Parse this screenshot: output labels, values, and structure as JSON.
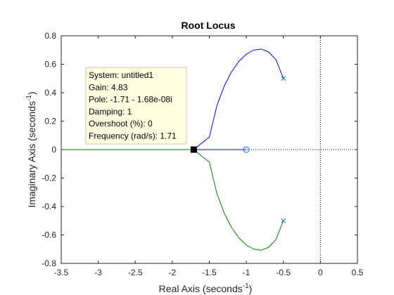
{
  "chart_data": {
    "type": "line",
    "title": "Root Locus",
    "xlabel": "Real Axis (seconds",
    "ylabel": "Imaginary Axis (seconds",
    "axis_unit_exponent": "-1",
    "axis_unit_close": ")",
    "xlim": [
      -3.5,
      0.5
    ],
    "ylim": [
      -0.8,
      0.8
    ],
    "xticks": [
      -3.5,
      -3,
      -2.5,
      -2,
      -1.5,
      -1,
      -0.5,
      0,
      0.5
    ],
    "xtick_labels": [
      "-3.5",
      "-3",
      "-2.5",
      "-2",
      "-1.5",
      "-1",
      "-0.5",
      "0",
      "0.5"
    ],
    "yticks": [
      -0.8,
      -0.6,
      -0.4,
      -0.2,
      0,
      0.2,
      0.4,
      0.6,
      0.8
    ],
    "ytick_labels": [
      "-0.8",
      "-0.6",
      "-0.4",
      "-0.2",
      "0",
      "0.2",
      "0.4",
      "0.6",
      "0.8"
    ],
    "grid": false,
    "colors": {
      "series1": "#0000ff",
      "series2": "#008000",
      "reference": "#000000",
      "marker": "#0072bd"
    },
    "series": [
      {
        "color": "#0000ff",
        "points": [
          [
            -0.5,
            0.5
          ],
          [
            -0.6,
            0.633
          ],
          [
            -0.7,
            0.687
          ],
          [
            -0.8,
            0.707
          ],
          [
            -0.9,
            0.7
          ],
          [
            -1.0,
            0.671
          ],
          [
            -1.1,
            0.621
          ],
          [
            -1.2,
            0.547
          ],
          [
            -1.3,
            0.445
          ],
          [
            -1.4,
            0.304
          ],
          [
            -1.5,
            0.087
          ],
          [
            -1.6,
            0.047
          ],
          [
            -1.65,
            0.025
          ],
          [
            -1.707,
            0.0
          ],
          [
            -2.0,
            0.0
          ],
          [
            -3.5,
            0.0
          ]
        ]
      },
      {
        "color": "#008000",
        "points": [
          [
            -0.5,
            -0.5
          ],
          [
            -0.6,
            -0.633
          ],
          [
            -0.7,
            -0.687
          ],
          [
            -0.8,
            -0.707
          ],
          [
            -0.9,
            -0.7
          ],
          [
            -1.0,
            -0.671
          ],
          [
            -1.1,
            -0.621
          ],
          [
            -1.2,
            -0.547
          ],
          [
            -1.3,
            -0.445
          ],
          [
            -1.4,
            -0.304
          ],
          [
            -1.5,
            -0.087
          ],
          [
            -1.6,
            -0.047
          ],
          [
            -1.65,
            -0.025
          ],
          [
            -1.707,
            0.0
          ],
          [
            -3.5,
            0.0
          ]
        ]
      }
    ],
    "blue_real_segment": [
      [
        -1.707,
        0.0
      ],
      [
        -1.0,
        0.0
      ]
    ],
    "poles": [
      [
        -0.5,
        0.5
      ],
      [
        -0.5,
        -0.5
      ]
    ],
    "zeros": [
      [
        -1.0,
        0.0
      ]
    ],
    "reference_lines": {
      "x": 0,
      "y": 0
    },
    "selected_point": [
      -1.71,
      0.0
    ],
    "datatip": {
      "lines": [
        "System: untitled1",
        "Gain: 4.83",
        "Pole: -1.71 - 1.68e-08i",
        "Damping: 1",
        "Overshoot (%): 0",
        "Frequency (rad/s): 1.71"
      ]
    }
  }
}
